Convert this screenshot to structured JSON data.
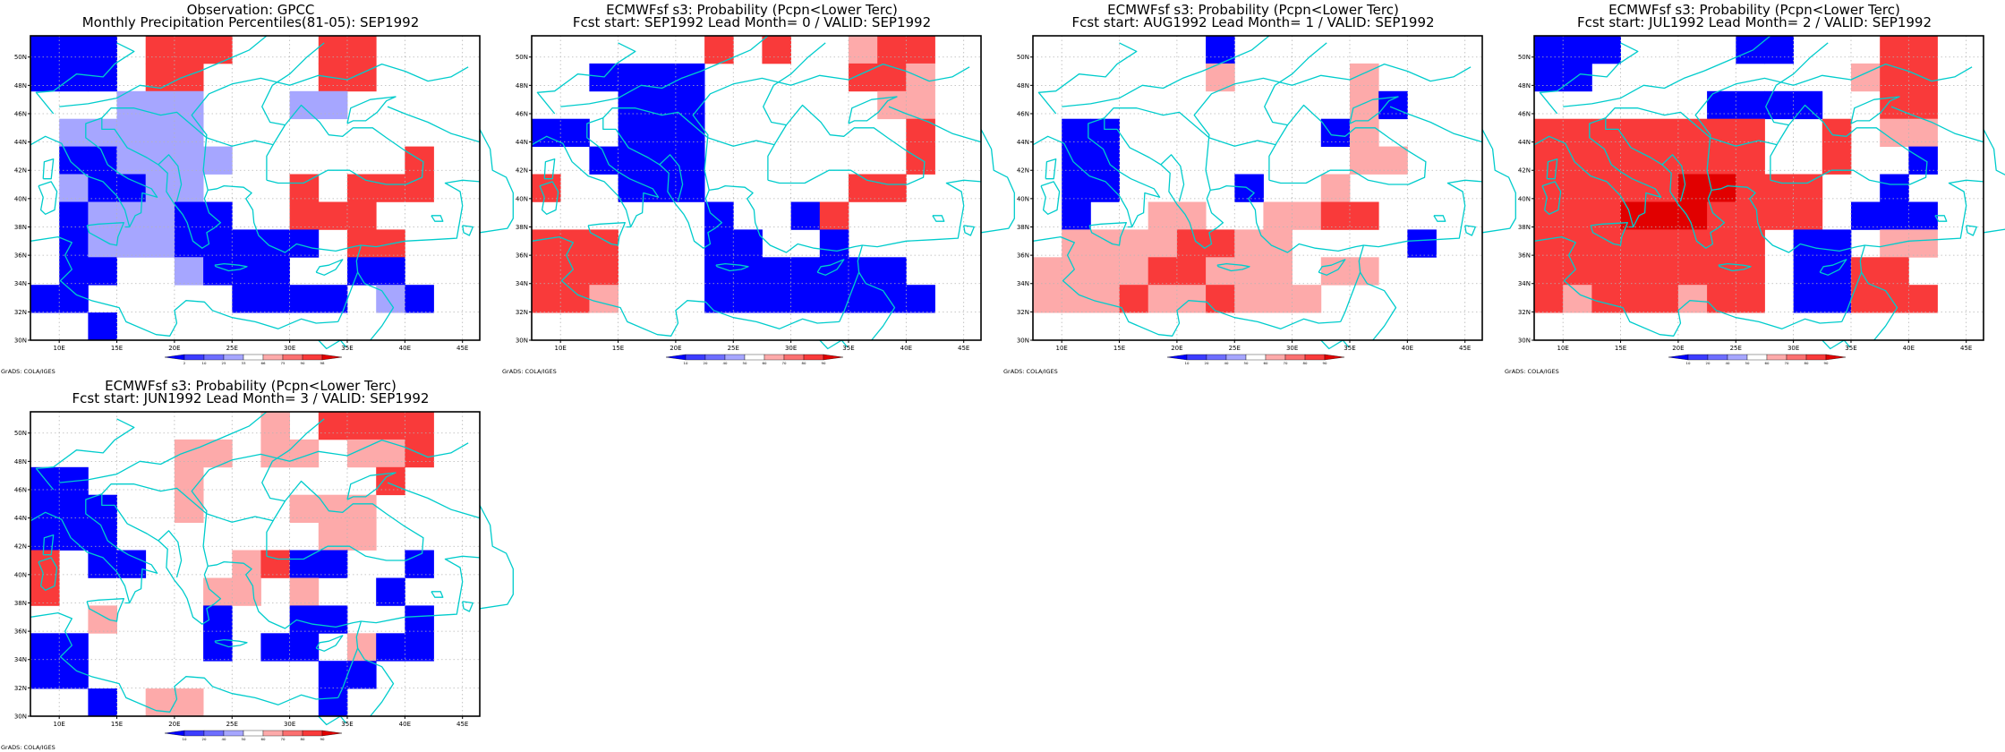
{
  "credit": "GrADS: COLA/IGES",
  "colors": {
    "coast": "#00cccc",
    "grid": "#b5b5b5",
    "blue": [
      "#0000ff",
      "#3c3cff",
      "#6e6eff",
      "#a6a6ff"
    ],
    "red": [
      "#fdaaaa",
      "#fb7070",
      "#f93a3a",
      "#e10000"
    ],
    "pct_blue": [
      "#0000ff",
      "#3c3cff",
      "#6e6eff",
      "#a6a6ff"
    ],
    "pct_red": [
      "#fdaaaa",
      "#fb7070",
      "#f93a3a",
      "#e10000"
    ]
  },
  "lon_labels": [
    "10E",
    "15E",
    "20E",
    "25E",
    "30E",
    "35E",
    "40E",
    "45E"
  ],
  "lat_labels": [
    "50N",
    "48N",
    "46N",
    "44N",
    "42N",
    "40N",
    "38N",
    "36N",
    "34N",
    "32N",
    "30N"
  ],
  "panels": [
    {
      "id": "obs",
      "title1": "Observation: GPCC",
      "title2": "Monthly Precipitation Percentiles(81-05): SEP1992",
      "colorbar_labels": [
        "2",
        "10",
        "25",
        "33",
        "66",
        "75",
        "90",
        "98"
      ],
      "colorbar_type": "pct",
      "grid": [
        "BBB.RRR...RR..",
        "BBB.RR....RR..",
        "...aaa...aa...",
        ".aaaaa.......",
        ".BBaaaa......R",
        ".aBBaa...R.RRR",
        ".BaaaBB..RRR..",
        ".BaaaBBBBB.RR.",
        ".BB..aBBB..BB.",
        "BB.....BBBB.aB",
        "..B..........."
      ]
    },
    {
      "id": "lead0",
      "title1": "ECMWFsf s3: Probability (Pcpn<Lower Terc)",
      "title2": "Fcst start: SEP1992  Lead Month= 0 / VALID: SEP1992",
      "colorbar_labels": [
        "10",
        "20",
        "40",
        "50",
        "60",
        "70",
        "80",
        "90"
      ],
      "colorbar_type": "prob",
      "grid": [
        "......R.R..pRR",
        "..BBBB.....RRp",
        "...BBB......pp",
        "BB.BBB.......R",
        "..BBBB.......R",
        "R..BBB.....RR.",
        "......B..BR...",
        "RRR...BB..B...",
        "RRR...BBBBBBB.",
        "RRp...BBBBBBBB",
        "..............."
      ]
    },
    {
      "id": "lead1",
      "title1": "ECMWFsf s3: Probability (Pcpn<Lower Terc)",
      "title2": "Fcst start: AUG1992  Lead Month= 1 / VALID: SEP1992",
      "colorbar_labels": [
        "10",
        "20",
        "40",
        "50",
        "60",
        "70",
        "80",
        "90"
      ],
      "colorbar_type": "prob",
      "grid": [
        "......B.......",
        "......p....p..",
        "...........pB.",
        ".BB.......Bp..",
        ".BB........pp.",
        ".BB....B..p...",
        ".B..pp..ppRR..",
        ".ppppRRpp....B",
        "ppppRRppp.pp..",
        "pppRppRppp....",
        "..............."
      ]
    },
    {
      "id": "lead2",
      "title1": "ECMWFsf s3: Probability (Pcpn<Lower Terc)",
      "title2": "Fcst start: JUL1992  Lead Month= 2 / VALID: SEP1992",
      "colorbar_labels": [
        "10",
        "20",
        "40",
        "50",
        "60",
        "70",
        "80",
        "90"
      ],
      "colorbar_type": "prob",
      "grid": [
        "BBB....BB...RR",
        "BB.........pRR",
        "......BBBB..RR",
        "RRRRRRRR..R.pp",
        "RRRRRRRR..R..B",
        "RRRRRDDRRR..B.",
        "RRRDDDRRRR.BBB",
        "RRRRRRRR.BB.pp",
        "RRRRRRRR.BBRR.",
        "RpRRRpRR.BBRRR",
        "..............."
      ]
    },
    {
      "id": "lead3",
      "title1": "ECMWFsf s3: Probability (Pcpn<Lower Terc)",
      "title2": "Fcst start: JUN1992  Lead Month= 3 / VALID: SEP1992",
      "colorbar_labels": [
        "10",
        "20",
        "40",
        "50",
        "60",
        "70",
        "80",
        "90"
      ],
      "colorbar_type": "prob",
      "grid": [
        "........p.RRRR",
        ".....pp.pp.ppR",
        "BB...p......R.",
        "BBB..p...ppp..",
        "BBB.......pp..",
        "R.BB...pRBB..B",
        "R.....pp.p..B.",
        "..p...B..BB..B",
        "BB....B.BB.pBB",
        "BB........BB..",
        "..B.pp....B..."
      ]
    }
  ]
}
